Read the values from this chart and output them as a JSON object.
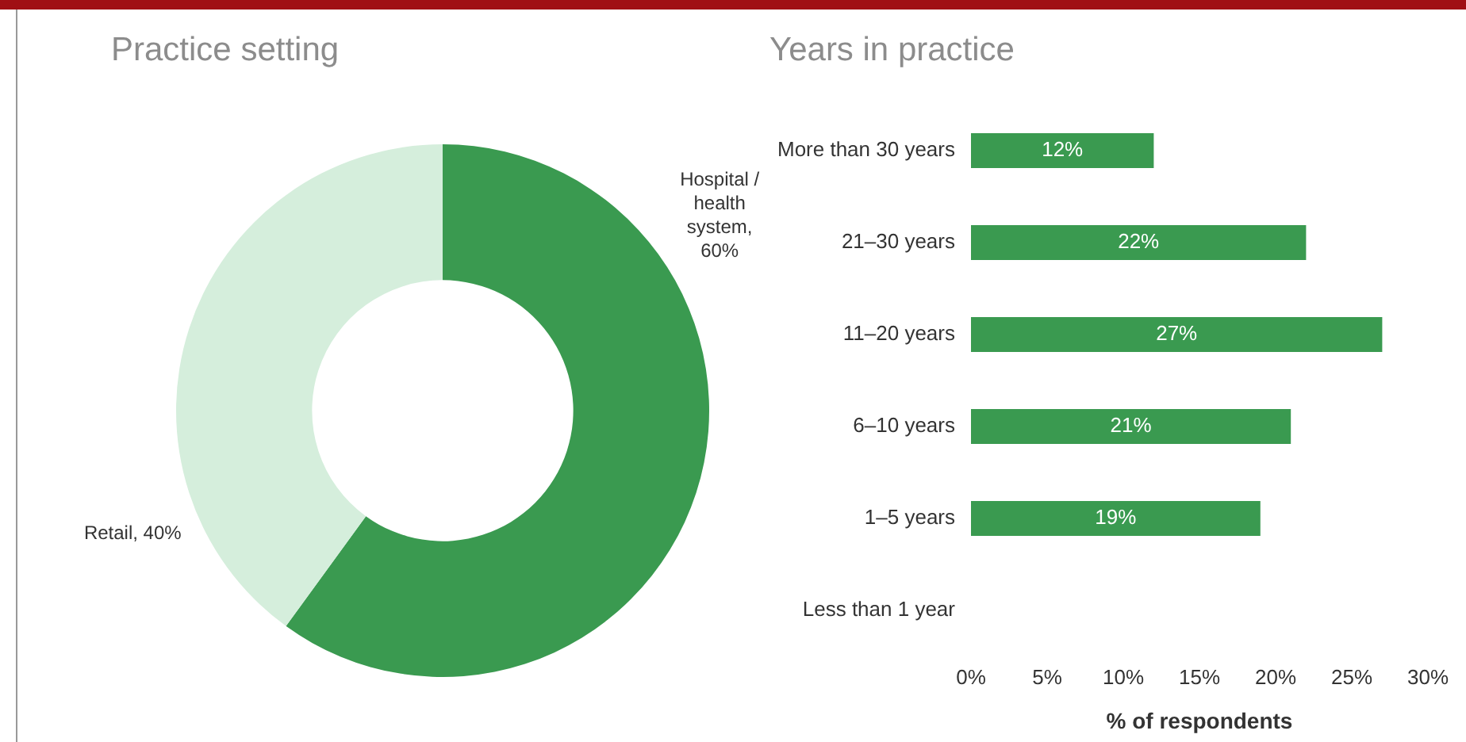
{
  "chart_data": [
    {
      "type": "donut",
      "title": "Practice setting",
      "categories": [
        "Hospital / health system, 60%",
        "Retail, 40%"
      ],
      "values": [
        60,
        40
      ],
      "colors": [
        "#3a9a50",
        "#d5eedc"
      ]
    },
    {
      "type": "bar",
      "title": "Years in practice",
      "orientation": "horizontal",
      "categories": [
        "More than 30 years",
        "21–30 years",
        "11–20 years",
        "6–10 years",
        "1–5 years",
        "Less than 1 year"
      ],
      "values": [
        12,
        22,
        27,
        21,
        19,
        null
      ],
      "color": "#3a9a50",
      "value_labels": [
        "12%",
        "22%",
        "27%",
        "21%",
        "19%",
        null
      ],
      "xlabel": "% of respondents",
      "xlim": [
        0,
        30
      ],
      "xticks": [
        {
          "value": 0,
          "label": "0%"
        },
        {
          "value": 5,
          "label": "5%"
        },
        {
          "value": 10,
          "label": "10%"
        },
        {
          "value": 15,
          "label": "15%"
        },
        {
          "value": 20,
          "label": "20%"
        },
        {
          "value": 25,
          "label": "25%"
        },
        {
          "value": 30,
          "label": "30%"
        }
      ],
      "grid": false,
      "legend": false
    }
  ]
}
